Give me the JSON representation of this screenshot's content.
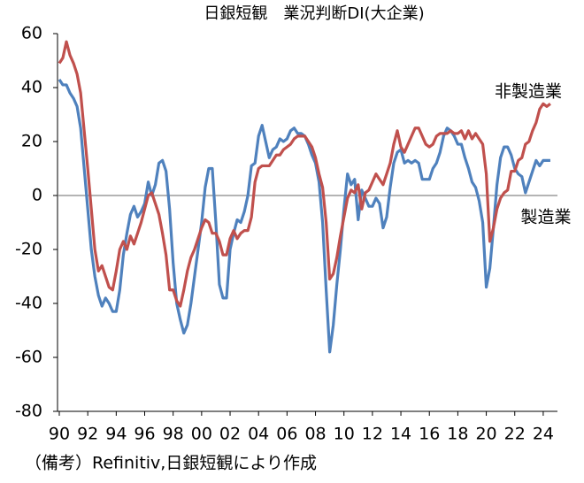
{
  "chart_data": {
    "type": "line",
    "title": "日銀短観　業況判断DI(大企業)",
    "note": "（備考）Refinitiv,日銀短観により作成",
    "x": [
      1990,
      1990.25,
      1990.5,
      1990.75,
      1991,
      1991.25,
      1991.5,
      1991.75,
      1992,
      1992.25,
      1992.5,
      1992.75,
      1993,
      1993.25,
      1993.5,
      1993.75,
      1994,
      1994.25,
      1994.5,
      1994.75,
      1995,
      1995.25,
      1995.5,
      1995.75,
      1996,
      1996.25,
      1996.5,
      1996.75,
      1997,
      1997.25,
      1997.5,
      1997.75,
      1998,
      1998.25,
      1998.5,
      1998.75,
      1999,
      1999.25,
      1999.5,
      1999.75,
      2000,
      2000.25,
      2000.5,
      2000.75,
      2001,
      2001.25,
      2001.5,
      2001.75,
      2002,
      2002.25,
      2002.5,
      2002.75,
      2003,
      2003.25,
      2003.5,
      2003.75,
      2004,
      2004.25,
      2004.5,
      2004.75,
      2005,
      2005.25,
      2005.5,
      2005.75,
      2006,
      2006.25,
      2006.5,
      2006.75,
      2007,
      2007.25,
      2007.5,
      2007.75,
      2008,
      2008.25,
      2008.5,
      2008.75,
      2009,
      2009.25,
      2009.5,
      2009.75,
      2010,
      2010.25,
      2010.5,
      2010.75,
      2011,
      2011.25,
      2011.5,
      2011.75,
      2012,
      2012.25,
      2012.5,
      2012.75,
      2013,
      2013.25,
      2013.5,
      2013.75,
      2014,
      2014.25,
      2014.5,
      2014.75,
      2015,
      2015.25,
      2015.5,
      2015.75,
      2016,
      2016.25,
      2016.5,
      2016.75,
      2017,
      2017.25,
      2017.5,
      2017.75,
      2018,
      2018.25,
      2018.5,
      2018.75,
      2019,
      2019.25,
      2019.5,
      2019.75,
      2020,
      2020.25,
      2020.5,
      2020.75,
      2021,
      2021.25,
      2021.5,
      2021.75,
      2022,
      2022.25,
      2022.5,
      2022.75,
      2023,
      2023.25,
      2023.5,
      2023.75,
      2024,
      2024.25,
      2024.5
    ],
    "series": [
      {
        "name": "製造業",
        "color": "#4f81bd",
        "values": [
          43,
          41,
          41,
          38,
          36,
          33,
          25,
          10,
          -5,
          -20,
          -30,
          -37,
          -41,
          -38,
          -40,
          -43,
          -43,
          -35,
          -22,
          -14,
          -7,
          -4,
          -8,
          -6,
          -3,
          5,
          0,
          4,
          12,
          13,
          9,
          -5,
          -25,
          -40,
          -46,
          -51,
          -48,
          -40,
          -30,
          -20,
          -10,
          3,
          10,
          10,
          -10,
          -33,
          -38,
          -38,
          -20,
          -14,
          -9,
          -10,
          -6,
          0,
          11,
          12,
          22,
          26,
          20,
          14,
          17,
          18,
          21,
          20,
          21,
          24,
          25,
          23,
          23,
          22,
          19,
          15,
          12,
          5,
          -10,
          -35,
          -58,
          -48,
          -33,
          -20,
          -5,
          8,
          4,
          6,
          -9,
          2,
          -1,
          -4,
          -4,
          -1,
          -3,
          -12,
          -8,
          3,
          12,
          16,
          17,
          12,
          13,
          12,
          13,
          12,
          6,
          6,
          6,
          10,
          12,
          16,
          22,
          25,
          24,
          22,
          19,
          19,
          14,
          10,
          5,
          3,
          -2,
          -10,
          -34,
          -27,
          -12,
          4,
          14,
          18,
          18,
          15,
          10,
          8,
          7,
          1,
          5,
          9,
          13,
          11,
          13,
          13,
          13
        ]
      },
      {
        "name": "非製造業",
        "color": "#c0504d",
        "values": [
          49,
          51,
          57,
          52,
          49,
          45,
          38,
          24,
          10,
          -5,
          -20,
          -28,
          -26,
          -30,
          -34,
          -35,
          -28,
          -20,
          -17,
          -20,
          -15,
          -18,
          -14,
          -10,
          -5,
          0,
          1,
          -3,
          -7,
          -14,
          -22,
          -35,
          -35,
          -39,
          -41,
          -35,
          -28,
          -23,
          -20,
          -16,
          -12,
          -9,
          -10,
          -14,
          -14,
          -17,
          -22,
          -22,
          -16,
          -13,
          -16,
          -14,
          -13,
          -13,
          -8,
          5,
          10,
          11,
          11,
          11,
          13,
          15,
          15,
          17,
          18,
          19,
          21,
          22,
          22,
          22,
          20,
          18,
          14,
          8,
          3,
          -10,
          -31,
          -29,
          -23,
          -15,
          -8,
          -1,
          2,
          1,
          4,
          -5,
          1,
          2,
          5,
          8,
          6,
          4,
          8,
          12,
          19,
          24,
          18,
          16,
          19,
          22,
          25,
          25,
          22,
          19,
          18,
          19,
          22,
          23,
          23,
          23,
          24,
          23,
          23,
          24,
          21,
          24,
          21,
          23,
          21,
          19,
          8,
          -17,
          -12,
          -5,
          -1,
          1,
          2,
          9,
          9,
          13,
          14,
          19,
          20,
          24,
          27,
          32,
          34,
          33,
          34
        ]
      }
    ],
    "xlim": [
      1990,
      2025
    ],
    "ylim": [
      -80,
      60
    ],
    "xticks": [
      {
        "value": 1990,
        "label": "90"
      },
      {
        "value": 1992,
        "label": "92"
      },
      {
        "value": 1994,
        "label": "94"
      },
      {
        "value": 1996,
        "label": "96"
      },
      {
        "value": 1998,
        "label": "98"
      },
      {
        "value": 2000,
        "label": "00"
      },
      {
        "value": 2002,
        "label": "02"
      },
      {
        "value": 2004,
        "label": "04"
      },
      {
        "value": 2006,
        "label": "06"
      },
      {
        "value": 2008,
        "label": "08"
      },
      {
        "value": 2010,
        "label": "10"
      },
      {
        "value": 2012,
        "label": "12"
      },
      {
        "value": 2014,
        "label": "14"
      },
      {
        "value": 2016,
        "label": "16"
      },
      {
        "value": 2018,
        "label": "18"
      },
      {
        "value": 2020,
        "label": "20"
      },
      {
        "value": 2022,
        "label": "22"
      },
      {
        "value": 2024,
        "label": "24"
      }
    ],
    "yticks": [
      60,
      40,
      20,
      0,
      -20,
      -40,
      -60,
      -80
    ]
  }
}
